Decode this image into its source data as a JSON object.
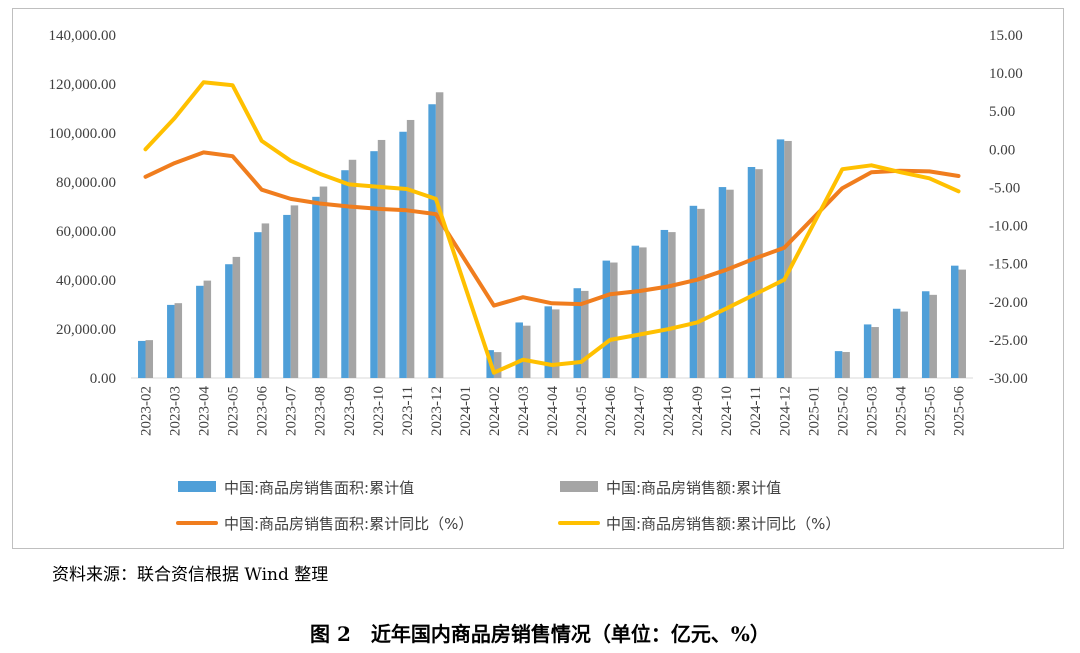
{
  "chart_data": {
    "type": "bar",
    "categories": [
      "2023-02",
      "2023-03",
      "2023-04",
      "2023-05",
      "2023-06",
      "2023-07",
      "2023-08",
      "2023-09",
      "2023-10",
      "2023-11",
      "2023-12",
      "2024-01",
      "2024-02",
      "2024-03",
      "2024-04",
      "2024-05",
      "2024-06",
      "2024-07",
      "2024-08",
      "2024-09",
      "2024-10",
      "2024-11",
      "2024-12",
      "2025-01",
      "2025-02",
      "2025-03",
      "2025-04",
      "2025-05",
      "2025-06"
    ],
    "left_axis": {
      "ylim": [
        0,
        140000
      ],
      "ticks": [
        "0.00",
        "20,000.00",
        "40,000.00",
        "60,000.00",
        "80,000.00",
        "100,000.00",
        "120,000.00",
        "140,000.00"
      ]
    },
    "right_axis": {
      "ylim": [
        -30,
        15
      ],
      "ticks": [
        "-30.00",
        "-25.00",
        "-20.00",
        "-15.00",
        "-10.00",
        "-5.00",
        "0.00",
        "5.00",
        "10.00",
        "15.00"
      ]
    },
    "series": [
      {
        "name": "中国:商品房销售面积:累计值",
        "kind": "bar",
        "axis": "left",
        "color": "#4f9fd8",
        "values": [
          15133,
          29838,
          37636,
          46440,
          59515,
          66563,
          73949,
          84806,
          92579,
          100509,
          111735,
          null,
          11369,
          22668,
          29252,
          36642,
          47916,
          54004,
          60430,
          70284,
          77930,
          86118,
          97385,
          null,
          10968,
          21869,
          28262,
          35401,
          45851
        ]
      },
      {
        "name": "中国:商品房销售额:累计值",
        "kind": "bar",
        "axis": "left",
        "color": "#a5a5a5",
        "values": [
          15459,
          30545,
          39750,
          49430,
          63092,
          70450,
          78158,
          89070,
          97161,
          105318,
          116622,
          null,
          10566,
          21355,
          27999,
          35554,
          47133,
          53305,
          59549,
          69035,
          76855,
          85237,
          96750,
          null,
          10602,
          20798,
          27123,
          33945,
          44241
        ]
      },
      {
        "name": "中国:商品房销售面积:累计同比（%）",
        "kind": "line",
        "axis": "right",
        "color": "#f07d1e",
        "values": [
          -3.6,
          -1.8,
          -0.4,
          -0.9,
          -5.3,
          -6.5,
          -7.1,
          -7.5,
          -7.8,
          -8.0,
          -8.5,
          null,
          -20.5,
          -19.4,
          -20.2,
          -20.3,
          -19.0,
          -18.6,
          -18.0,
          -17.1,
          -15.8,
          -14.3,
          -12.9,
          null,
          -5.1,
          -3.0,
          -2.8,
          -2.9,
          -3.5
        ]
      },
      {
        "name": "中国:商品房销售额:累计同比（%）",
        "kind": "line",
        "axis": "right",
        "color": "#ffc000",
        "values": [
          0.0,
          4.1,
          8.8,
          8.4,
          1.1,
          -1.5,
          -3.2,
          -4.6,
          -4.9,
          -5.2,
          -6.5,
          null,
          -29.3,
          -27.6,
          -28.3,
          -27.9,
          -25.0,
          -24.3,
          -23.6,
          -22.7,
          -20.9,
          -19.0,
          -17.1,
          null,
          -2.6,
          -2.1,
          -3.0,
          -3.8,
          -5.5
        ]
      }
    ]
  },
  "source_note": "资料来源：联合资信根据 Wind 整理",
  "figure_caption": "图 2　近年国内商品房销售情况（单位：亿元、%）"
}
